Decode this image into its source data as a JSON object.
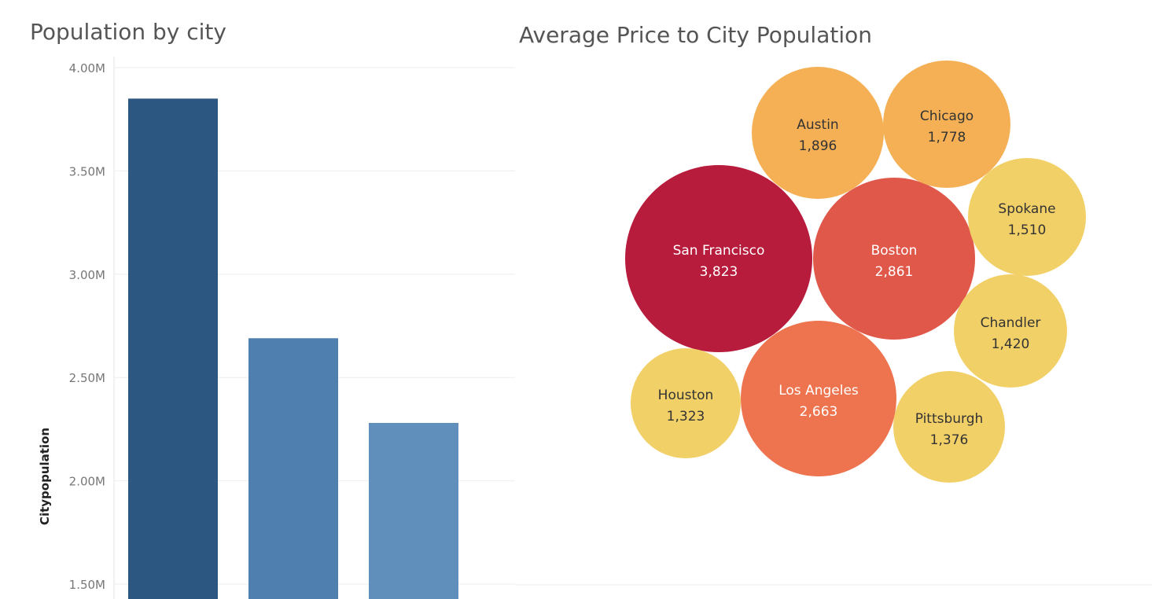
{
  "chart_data": [
    {
      "type": "bar",
      "title": "Population by city",
      "ylabel": "Citypopulation",
      "xlabel": "",
      "ylim": [
        1.5,
        4.0
      ],
      "y_unit_suffix": "M",
      "yticks": [
        "4.00M",
        "3.50M",
        "3.00M",
        "2.50M",
        "2.00M",
        "1.50M"
      ],
      "ytick_values": [
        4.0,
        3.5,
        3.0,
        2.5,
        2.0,
        1.5
      ],
      "values": [
        3.85,
        2.69,
        2.28
      ],
      "colors": [
        "#2c5781",
        "#4f7fae",
        "#5f8fba"
      ],
      "grid": true
    },
    {
      "type": "bubble",
      "title": "Average Price to City Population",
      "items": [
        {
          "city": "San Francisco",
          "value": "3,823",
          "color": "#b81c3d",
          "text_color": "#ffffff"
        },
        {
          "city": "Boston",
          "value": "2,861",
          "color": "#e0584a",
          "text_color": "#ffffff"
        },
        {
          "city": "Los Angeles",
          "value": "2,663",
          "color": "#ed744e",
          "text_color": "#ffffff"
        },
        {
          "city": "Austin",
          "value": "1,896",
          "color": "#f5b055",
          "text_color": "#333333"
        },
        {
          "city": "Chicago",
          "value": "1,778",
          "color": "#f5b055",
          "text_color": "#333333"
        },
        {
          "city": "Spokane",
          "value": "1,510",
          "color": "#f2d068",
          "text_color": "#333333"
        },
        {
          "city": "Chandler",
          "value": "1,420",
          "color": "#f2d068",
          "text_color": "#333333"
        },
        {
          "city": "Pittsburgh",
          "value": "1,376",
          "color": "#f2d068",
          "text_color": "#333333"
        },
        {
          "city": "Houston",
          "value": "1,323",
          "color": "#f2d068",
          "text_color": "#333333"
        }
      ]
    }
  ]
}
